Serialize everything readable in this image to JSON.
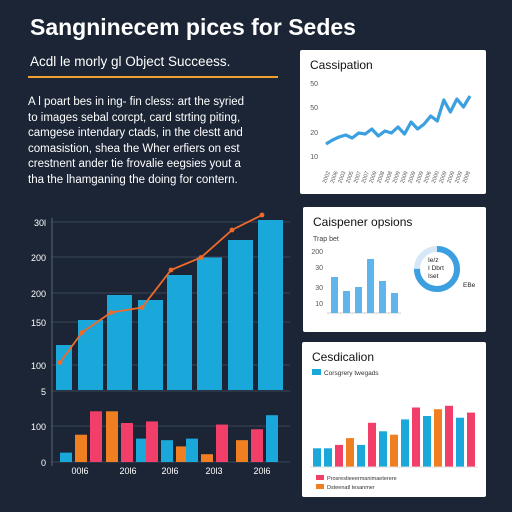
{
  "header": {
    "title": "Sangninecem pices for Sedes",
    "subtitle": "Acdl le morly gl Object Succeess."
  },
  "paragraph": [
    "A l poart bes in ing- fin cless: art the syried",
    "to images sebal corcpt, card strting piting,",
    "camgese intendary ctads, in the clestt and",
    "comasistion, shea the Wher erfiers on est",
    "crestnent ander tie frovalie eegsies yout a",
    "tha the lhamganing the doing for contern."
  ],
  "colors": {
    "background": "#1b2535",
    "blue": "#1aa7d9",
    "orange": "#f07f22",
    "pink": "#f23f6a",
    "line": "#f06a2a",
    "card_blue": "#3b9fe0",
    "accent": "#f0a030"
  },
  "chart_data": [
    {
      "type": "bar",
      "title": "",
      "yticks": [
        "30l",
        "200",
        "200",
        "150",
        "100",
        "5",
        "100",
        "0"
      ],
      "xticks": [
        "00l6",
        "20l6",
        "20l6",
        "20l3",
        "20l6"
      ],
      "top_series": {
        "name": "",
        "values": [
          90,
          140,
          190,
          180,
          230,
          265,
          300,
          340
        ],
        "trend_line": [
          55,
          115,
          155,
          165,
          240,
          265,
          320,
          350
        ]
      },
      "bottom_groups": [
        {
          "values": [
            12,
            35,
            65
          ]
        },
        {
          "values": [
            65,
            50,
            30
          ]
        },
        {
          "values": [
            52,
            28,
            20
          ]
        },
        {
          "values": [
            30,
            10,
            48
          ]
        },
        {
          "values": [
            28,
            42,
            60
          ]
        }
      ]
    },
    {
      "type": "line",
      "title": "Cassipation",
      "yticks": [
        "50",
        "50",
        "20",
        "10"
      ],
      "xticks": [
        "2002",
        "2006",
        "2003",
        "2005",
        "2007",
        "2007",
        "2009",
        "2008",
        "2008",
        "2009",
        "2009",
        "2009",
        "2009",
        "2006",
        "2000",
        "2009",
        "2009",
        "2009",
        "2008"
      ],
      "values": [
        18,
        22,
        25,
        27,
        24,
        29,
        28,
        33,
        26,
        31,
        29,
        35,
        28,
        40,
        33,
        38,
        46,
        41,
        62,
        50,
        63,
        55,
        66
      ]
    },
    {
      "type": "bar",
      "title": "Caispener opsions",
      "legend_label": "Trap bet",
      "yticks": [
        "200",
        "30",
        "30",
        "10"
      ],
      "values": [
        36,
        22,
        26,
        54,
        32,
        20
      ],
      "donut_labels": [
        "Ie/z",
        "I Dbrt",
        "Iset"
      ],
      "donut_value": 0.75,
      "side_label": "EBe"
    },
    {
      "type": "bar",
      "title": "Cesdicalion",
      "legend_top": "Corsgrery twegads",
      "legend_bottom": [
        "Prosrestieeermanimaeterere",
        "Dsteenatl tesanmer"
      ],
      "values": [
        {
          "v": 22,
          "c": "blue"
        },
        {
          "v": 22,
          "c": "blue"
        },
        {
          "v": 26,
          "c": "pink"
        },
        {
          "v": 34,
          "c": "orange"
        },
        {
          "v": 26,
          "c": "blue"
        },
        {
          "v": 52,
          "c": "pink"
        },
        {
          "v": 42,
          "c": "blue"
        },
        {
          "v": 38,
          "c": "orange"
        },
        {
          "v": 56,
          "c": "blue"
        },
        {
          "v": 70,
          "c": "pink"
        },
        {
          "v": 60,
          "c": "blue"
        },
        {
          "v": 68,
          "c": "orange"
        },
        {
          "v": 72,
          "c": "pink"
        },
        {
          "v": 58,
          "c": "blue"
        },
        {
          "v": 64,
          "c": "pink"
        }
      ]
    }
  ]
}
